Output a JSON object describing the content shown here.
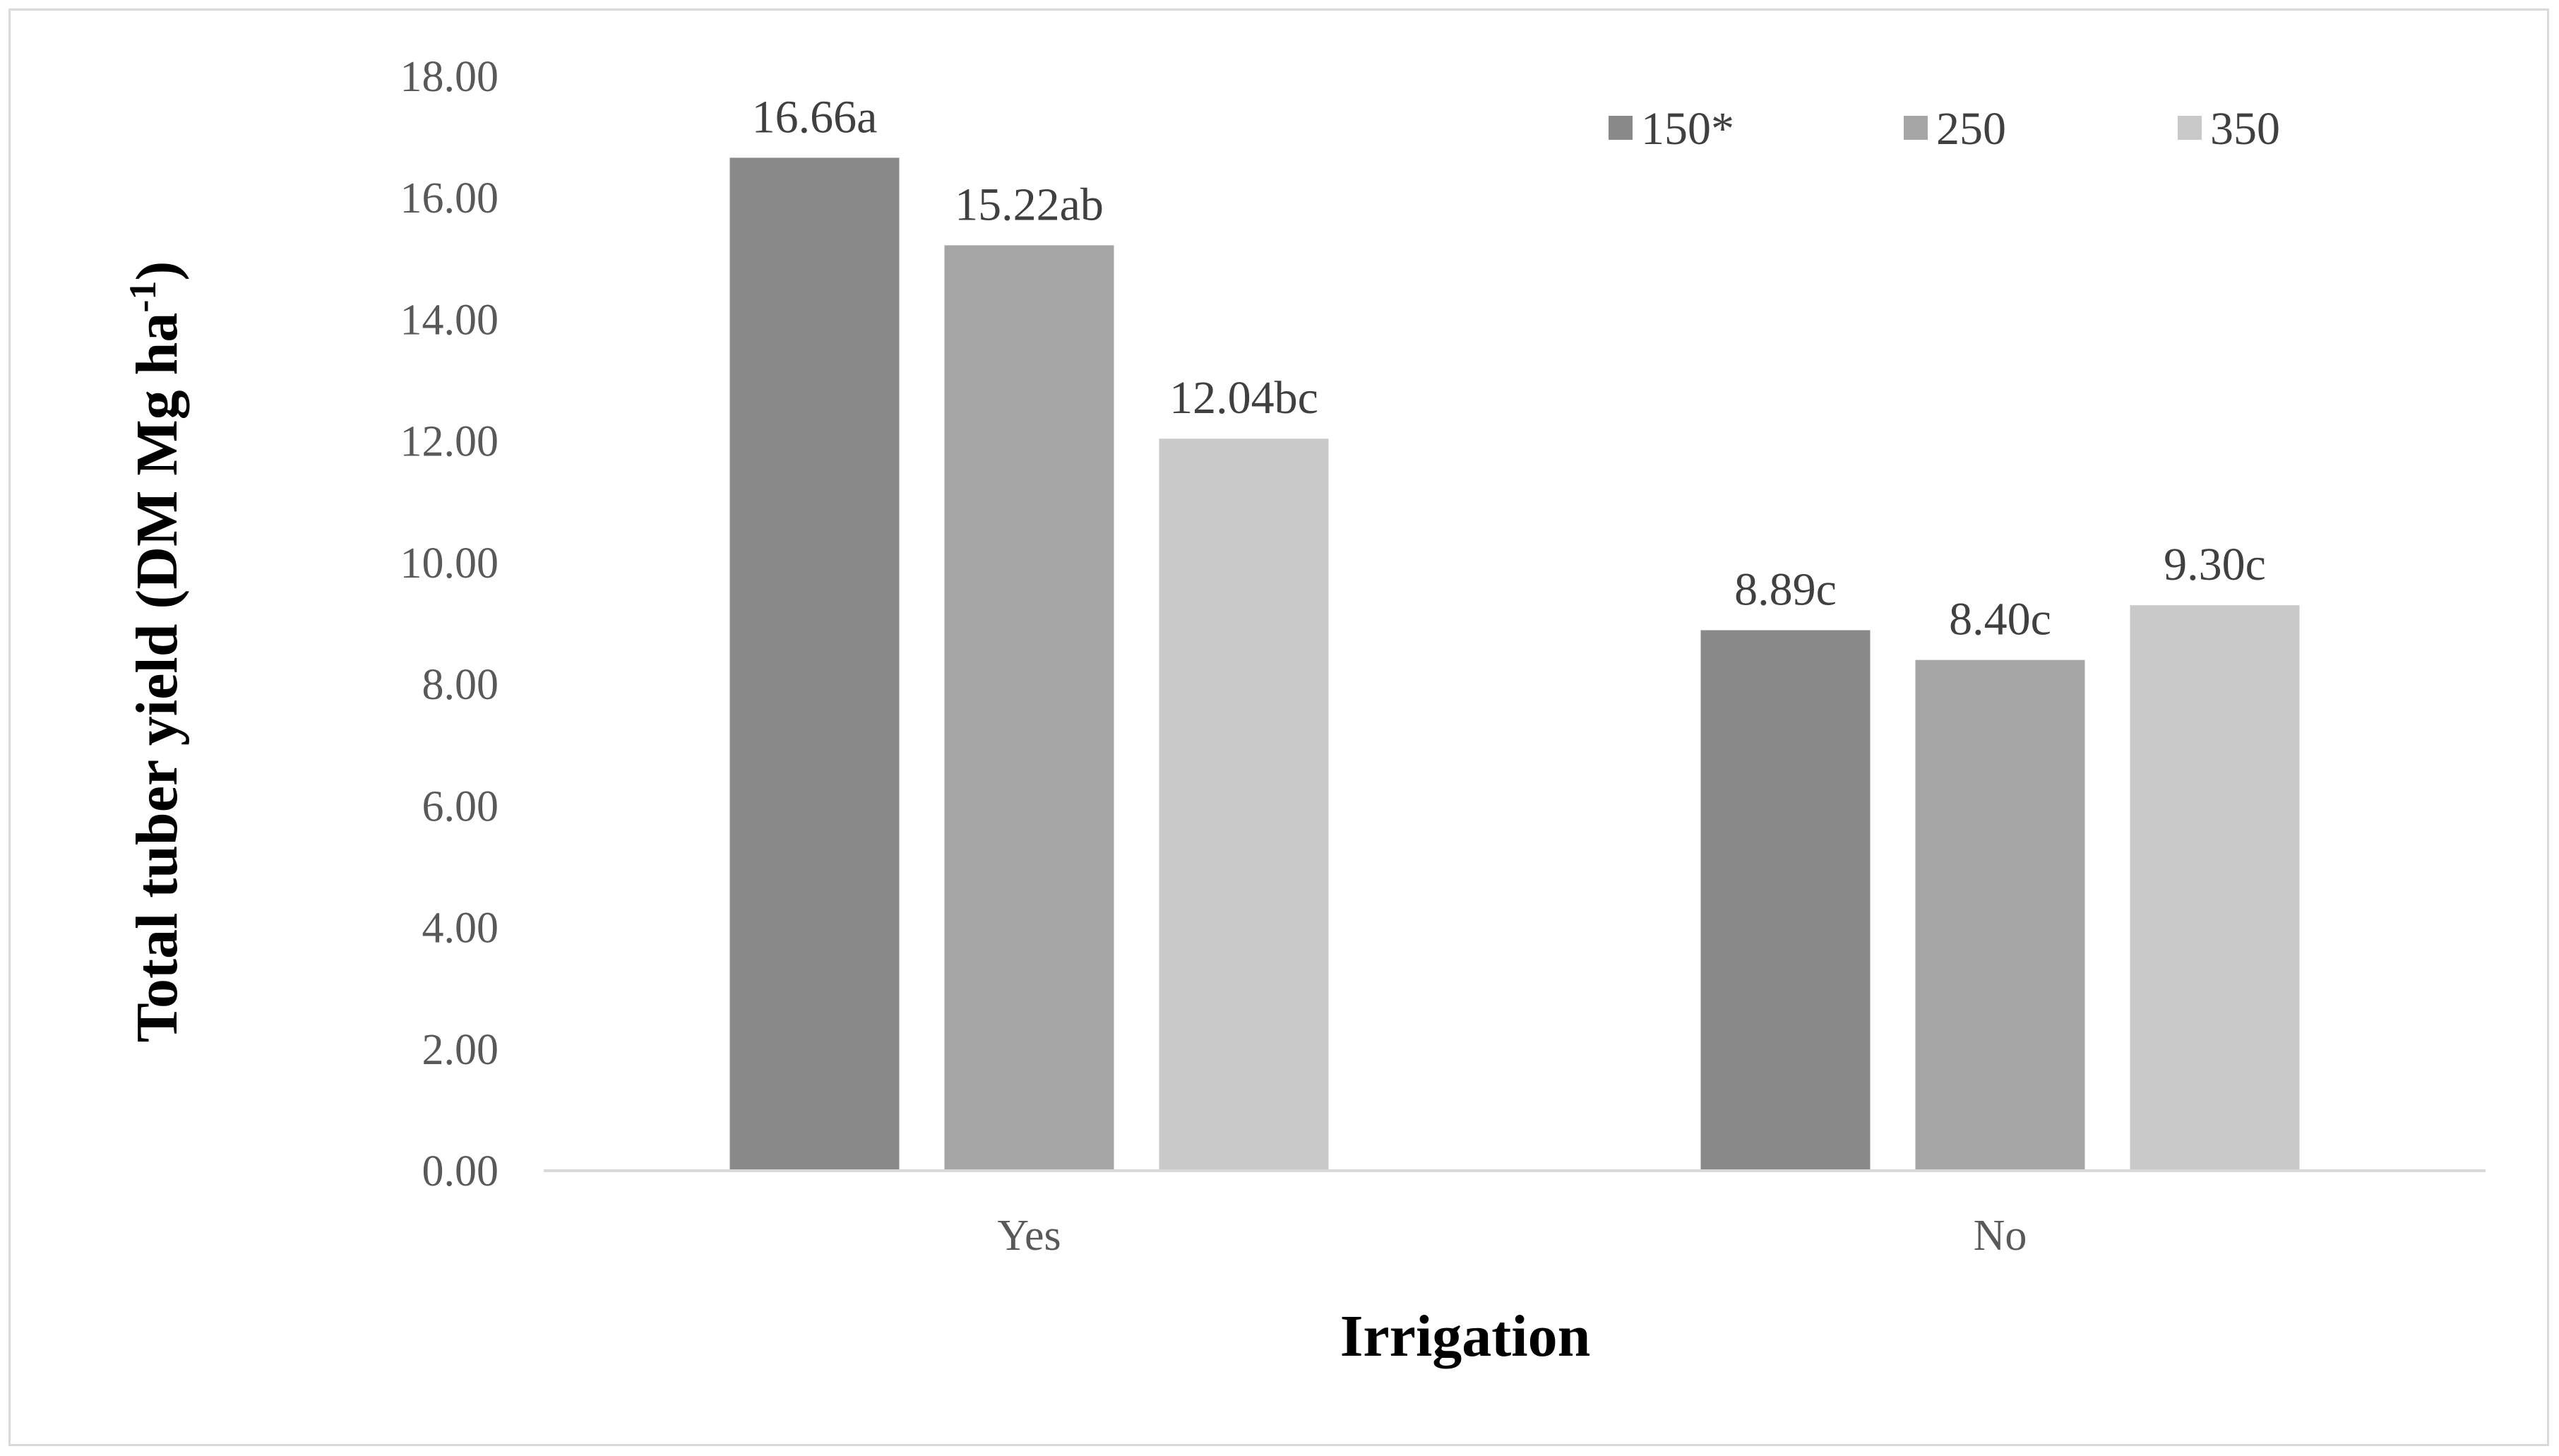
{
  "chart_data": {
    "type": "bar",
    "title": "",
    "xlabel": "Irrigation",
    "ylabel": "Total tuber yield (DM Mg ha",
    "ylabel_superscript": "-1",
    "ylabel_suffix": ")",
    "categories": [
      "Yes",
      "No"
    ],
    "ylim": [
      0,
      18
    ],
    "yticks": [
      "0.00",
      "2.00",
      "4.00",
      "6.00",
      "8.00",
      "10.00",
      "12.00",
      "14.00",
      "16.00",
      "18.00"
    ],
    "grid": false,
    "legend_position": "top-right",
    "series": [
      {
        "name": "150*",
        "color": "#898989",
        "values": [
          16.66,
          8.89
        ],
        "labels": [
          "16.66a",
          "8.89c"
        ]
      },
      {
        "name": "250",
        "color": "#a5a5a5",
        "values": [
          15.22,
          8.4
        ],
        "labels": [
          "15.22ab",
          "8.40c"
        ]
      },
      {
        "name": "350",
        "color": "#c9c9c9",
        "values": [
          12.04,
          9.3
        ],
        "labels": [
          "12.04bc",
          "9.30c"
        ]
      }
    ],
    "axis_color": "#d9d9d9"
  }
}
